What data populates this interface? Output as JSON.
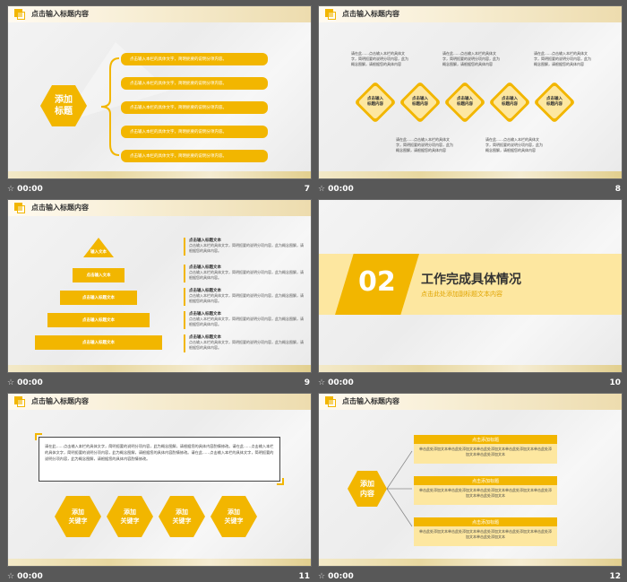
{
  "accent": "#f2b600",
  "slides": [
    {
      "num": "7",
      "time": "00:00",
      "title": "点击输入标题内容",
      "hex_label": "添加\n标题",
      "pills": [
        "点击输入本栏的具体文字，简明扼要的说明分项内容。",
        "点击输入本栏的具体文字，简明扼要的说明分项内容。",
        "点击输入本栏的具体文字，简明扼要的说明分项内容。",
        "点击输入本栏的具体文字，简明扼要的说明分项内容。",
        "点击输入本栏的具体文字，简明扼要的说明分项内容。"
      ]
    },
    {
      "num": "8",
      "time": "00:00",
      "title": "点击输入标题内容",
      "diamond_label": "点击输入\n标题内容",
      "top_texts": [
        "请在此……点击输入本栏的具体文字，简明扼要的说明分项内容，此为概念图解，请根据您的具体内容",
        "请在此……点击输入本栏的具体文字，简明扼要的说明分项内容，此为概念图解，请根据您的具体内容",
        "请在此……点击输入本栏的具体文字，简明扼要的说明分项内容，此为概念图解，请根据您的具体内容"
      ],
      "bottom_texts": [
        "请在此……点击输入本栏的具体文字，简明扼要的说明分项内容，此为概念图解，请根据您的具体内容",
        "请在此……点击输入本栏的具体文字，简明扼要的说明分项内容，此为概念图解，请根据您的具体内容"
      ]
    },
    {
      "num": "9",
      "time": "00:00",
      "title": "点击输入标题内容",
      "levels": [
        "输入文本",
        "点击输入文本",
        "点击输入标题文本",
        "点击输入标题文本",
        "点击输入标题文本"
      ],
      "desc_title": "点击输入标题文本",
      "desc_body": "点击输入本栏的具体文字，简明扼要的说明分项内容，此为概念图解，请根据您的具体内容。"
    },
    {
      "num": "10",
      "time": "00:00",
      "sec_num": "02",
      "sec_title": "工作完成具体情况",
      "sec_sub": "点击此处添加副标题文本内容"
    },
    {
      "num": "11",
      "time": "00:00",
      "title": "点击输入标题内容",
      "paragraph": "请在此……点击输入本栏的具体文字，简明扼要的说明分项内容，此为概念图解，请根据您的具体内容酌情修改。请在此……点击输入本栏的具体文字，简明扼要的说明分项内容，此为概念图解，请根据您的具体内容酌情修改。请在此……点击输入本栏的具体文字，简明扼要的说明分项内容，此为概念图解，请根据您的具体内容酌情修改。",
      "hex_labels": [
        "添加\n关键字",
        "添加\n关键字",
        "添加\n关键字",
        "添加\n关键字"
      ]
    },
    {
      "num": "12",
      "time": "00:00",
      "title": "点击输入标题内容",
      "hex_label": "添加\n内容",
      "card_head": "点击添加标题",
      "card_body": "单击此处添加文本单击此处添加文本单击此处添加文本单击此处添加文本单击此处添加文本单击此处添加文本"
    }
  ]
}
